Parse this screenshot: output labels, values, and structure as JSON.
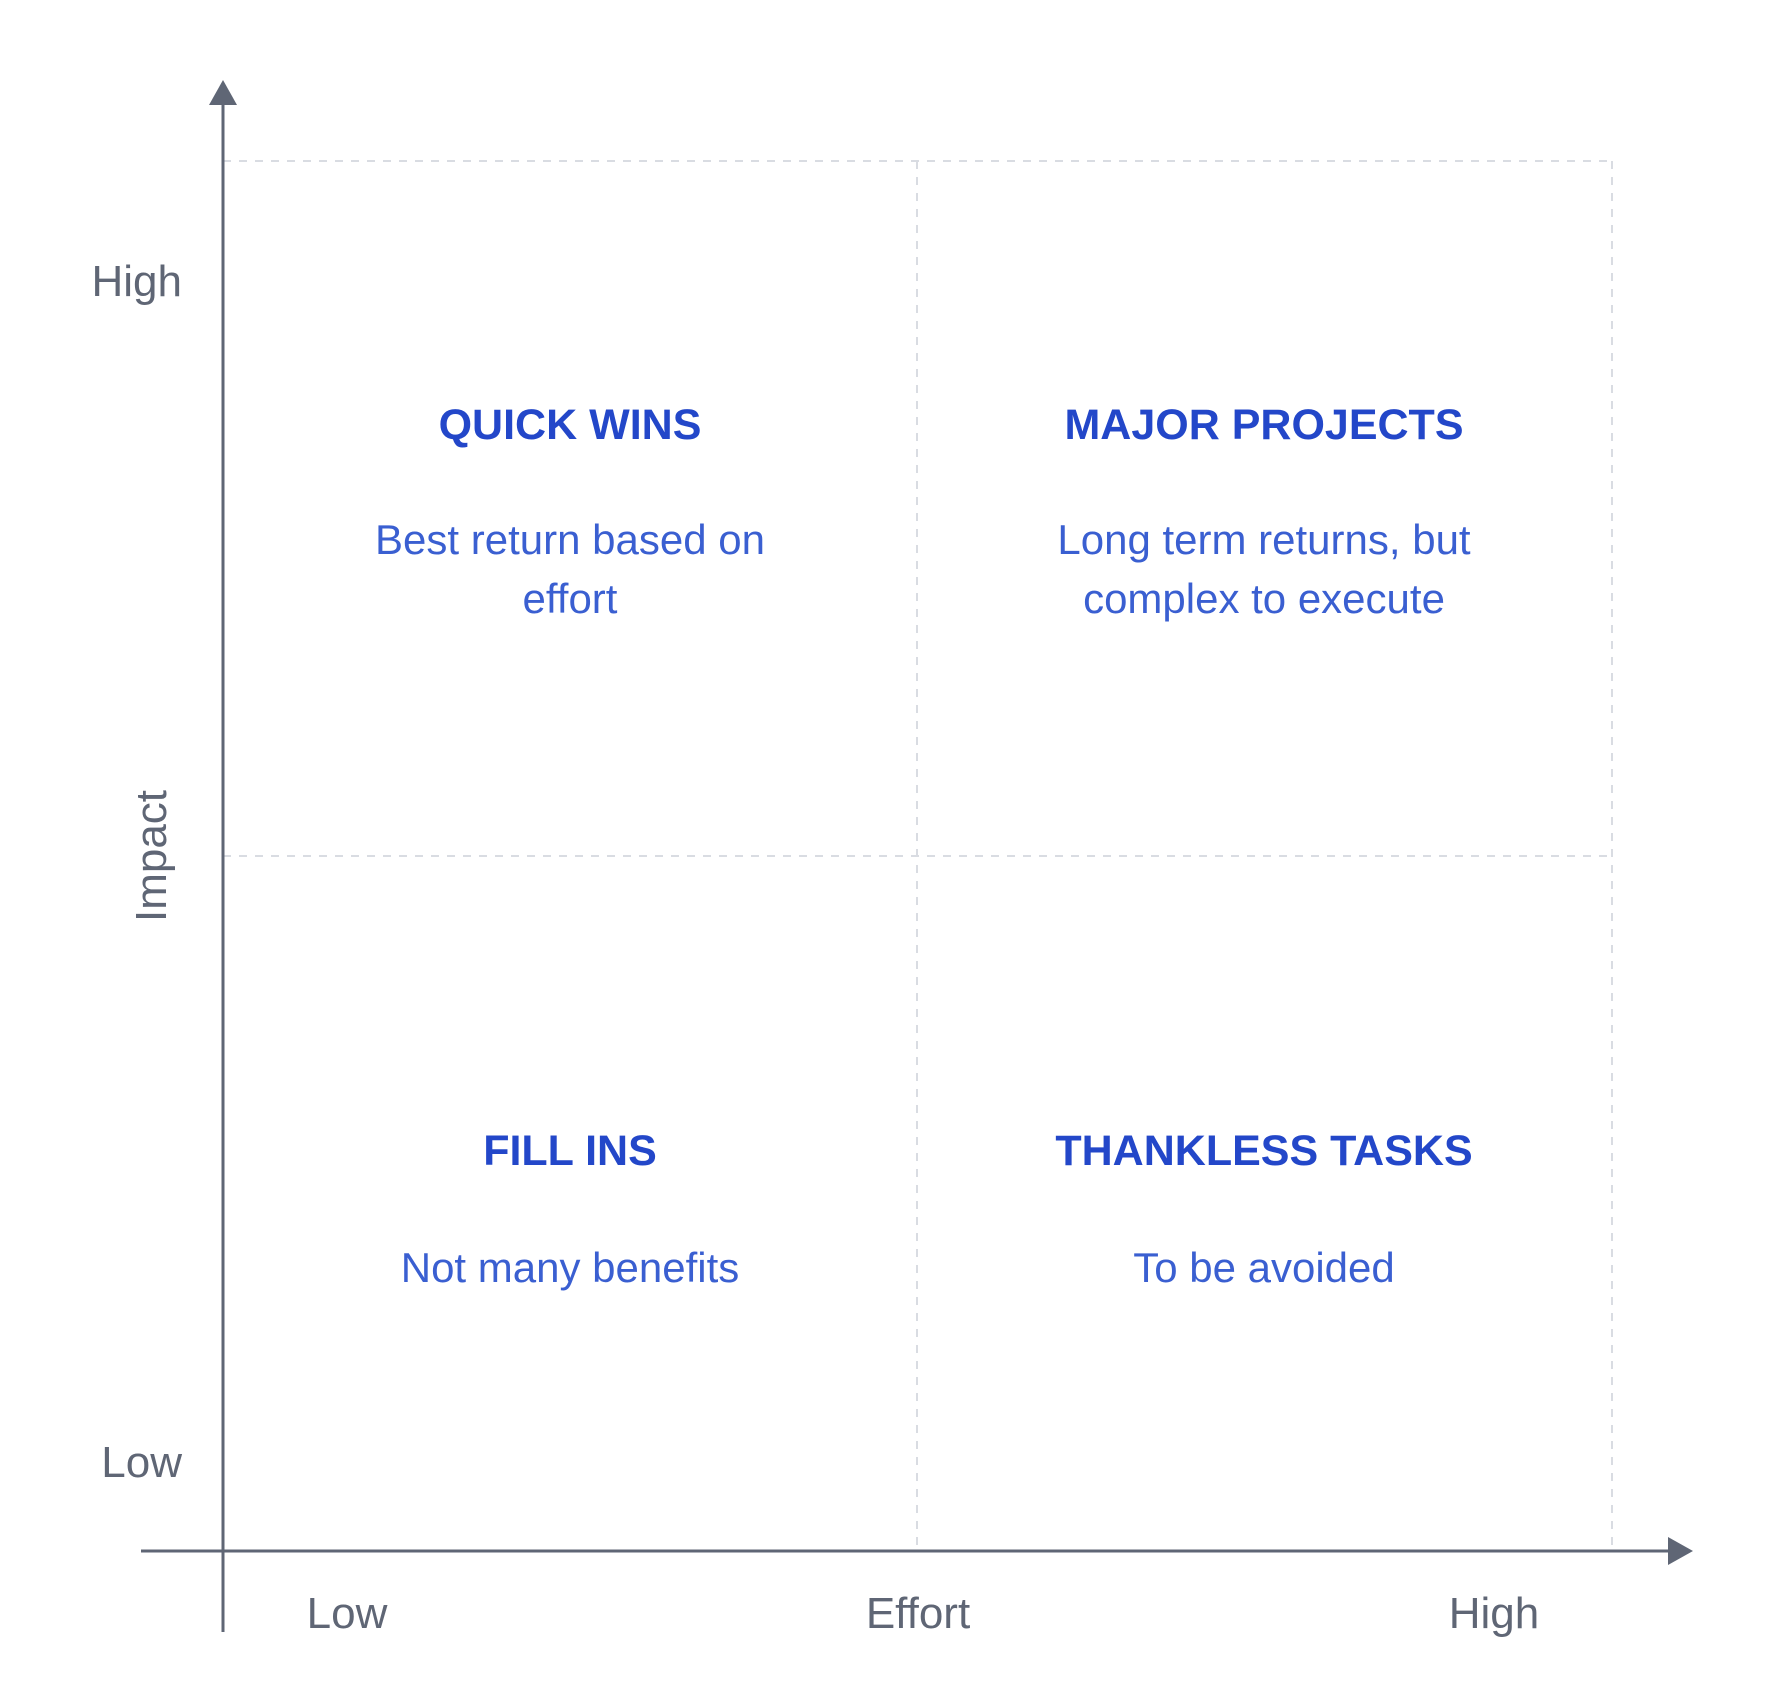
{
  "axes": {
    "y_label": "Impact",
    "y_high": "High",
    "y_low": "Low",
    "x_label": "Effort",
    "x_low": "Low",
    "x_high": "High"
  },
  "quadrants": {
    "top_left": {
      "title": "QUICK WINS",
      "desc_line1": "Best return based on",
      "desc_line2": "effort"
    },
    "top_right": {
      "title": "MAJOR PROJECTS",
      "desc_line1": "Long term returns, but",
      "desc_line2": "complex to execute"
    },
    "bottom_left": {
      "title": "FILL INS",
      "desc_line1": "Not many benefits"
    },
    "bottom_right": {
      "title": "THANKLESS TASKS",
      "desc_line1": "To be avoided"
    }
  },
  "colors": {
    "axis": "#5f6675",
    "grid": "#d9dce2",
    "title": "#2347c9",
    "description": "#3a5fd1"
  }
}
